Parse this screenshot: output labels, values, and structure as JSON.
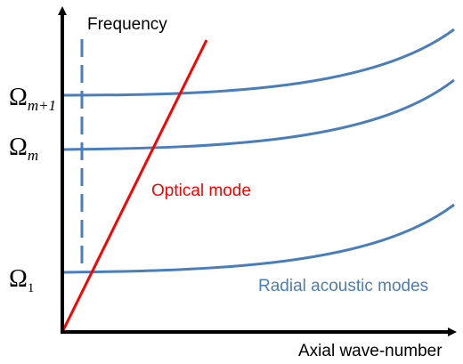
{
  "axes": {
    "y_label": "Frequency",
    "x_label": "Axial wave-number"
  },
  "levels": [
    {
      "symbol": "Ω",
      "subscript": "m+1"
    },
    {
      "symbol": "Ω",
      "subscript": "m"
    },
    {
      "symbol": "Ω",
      "subscript": "1"
    }
  ],
  "annotations": {
    "optical": "Optical mode",
    "acoustic": "Radial acoustic modes"
  }
}
